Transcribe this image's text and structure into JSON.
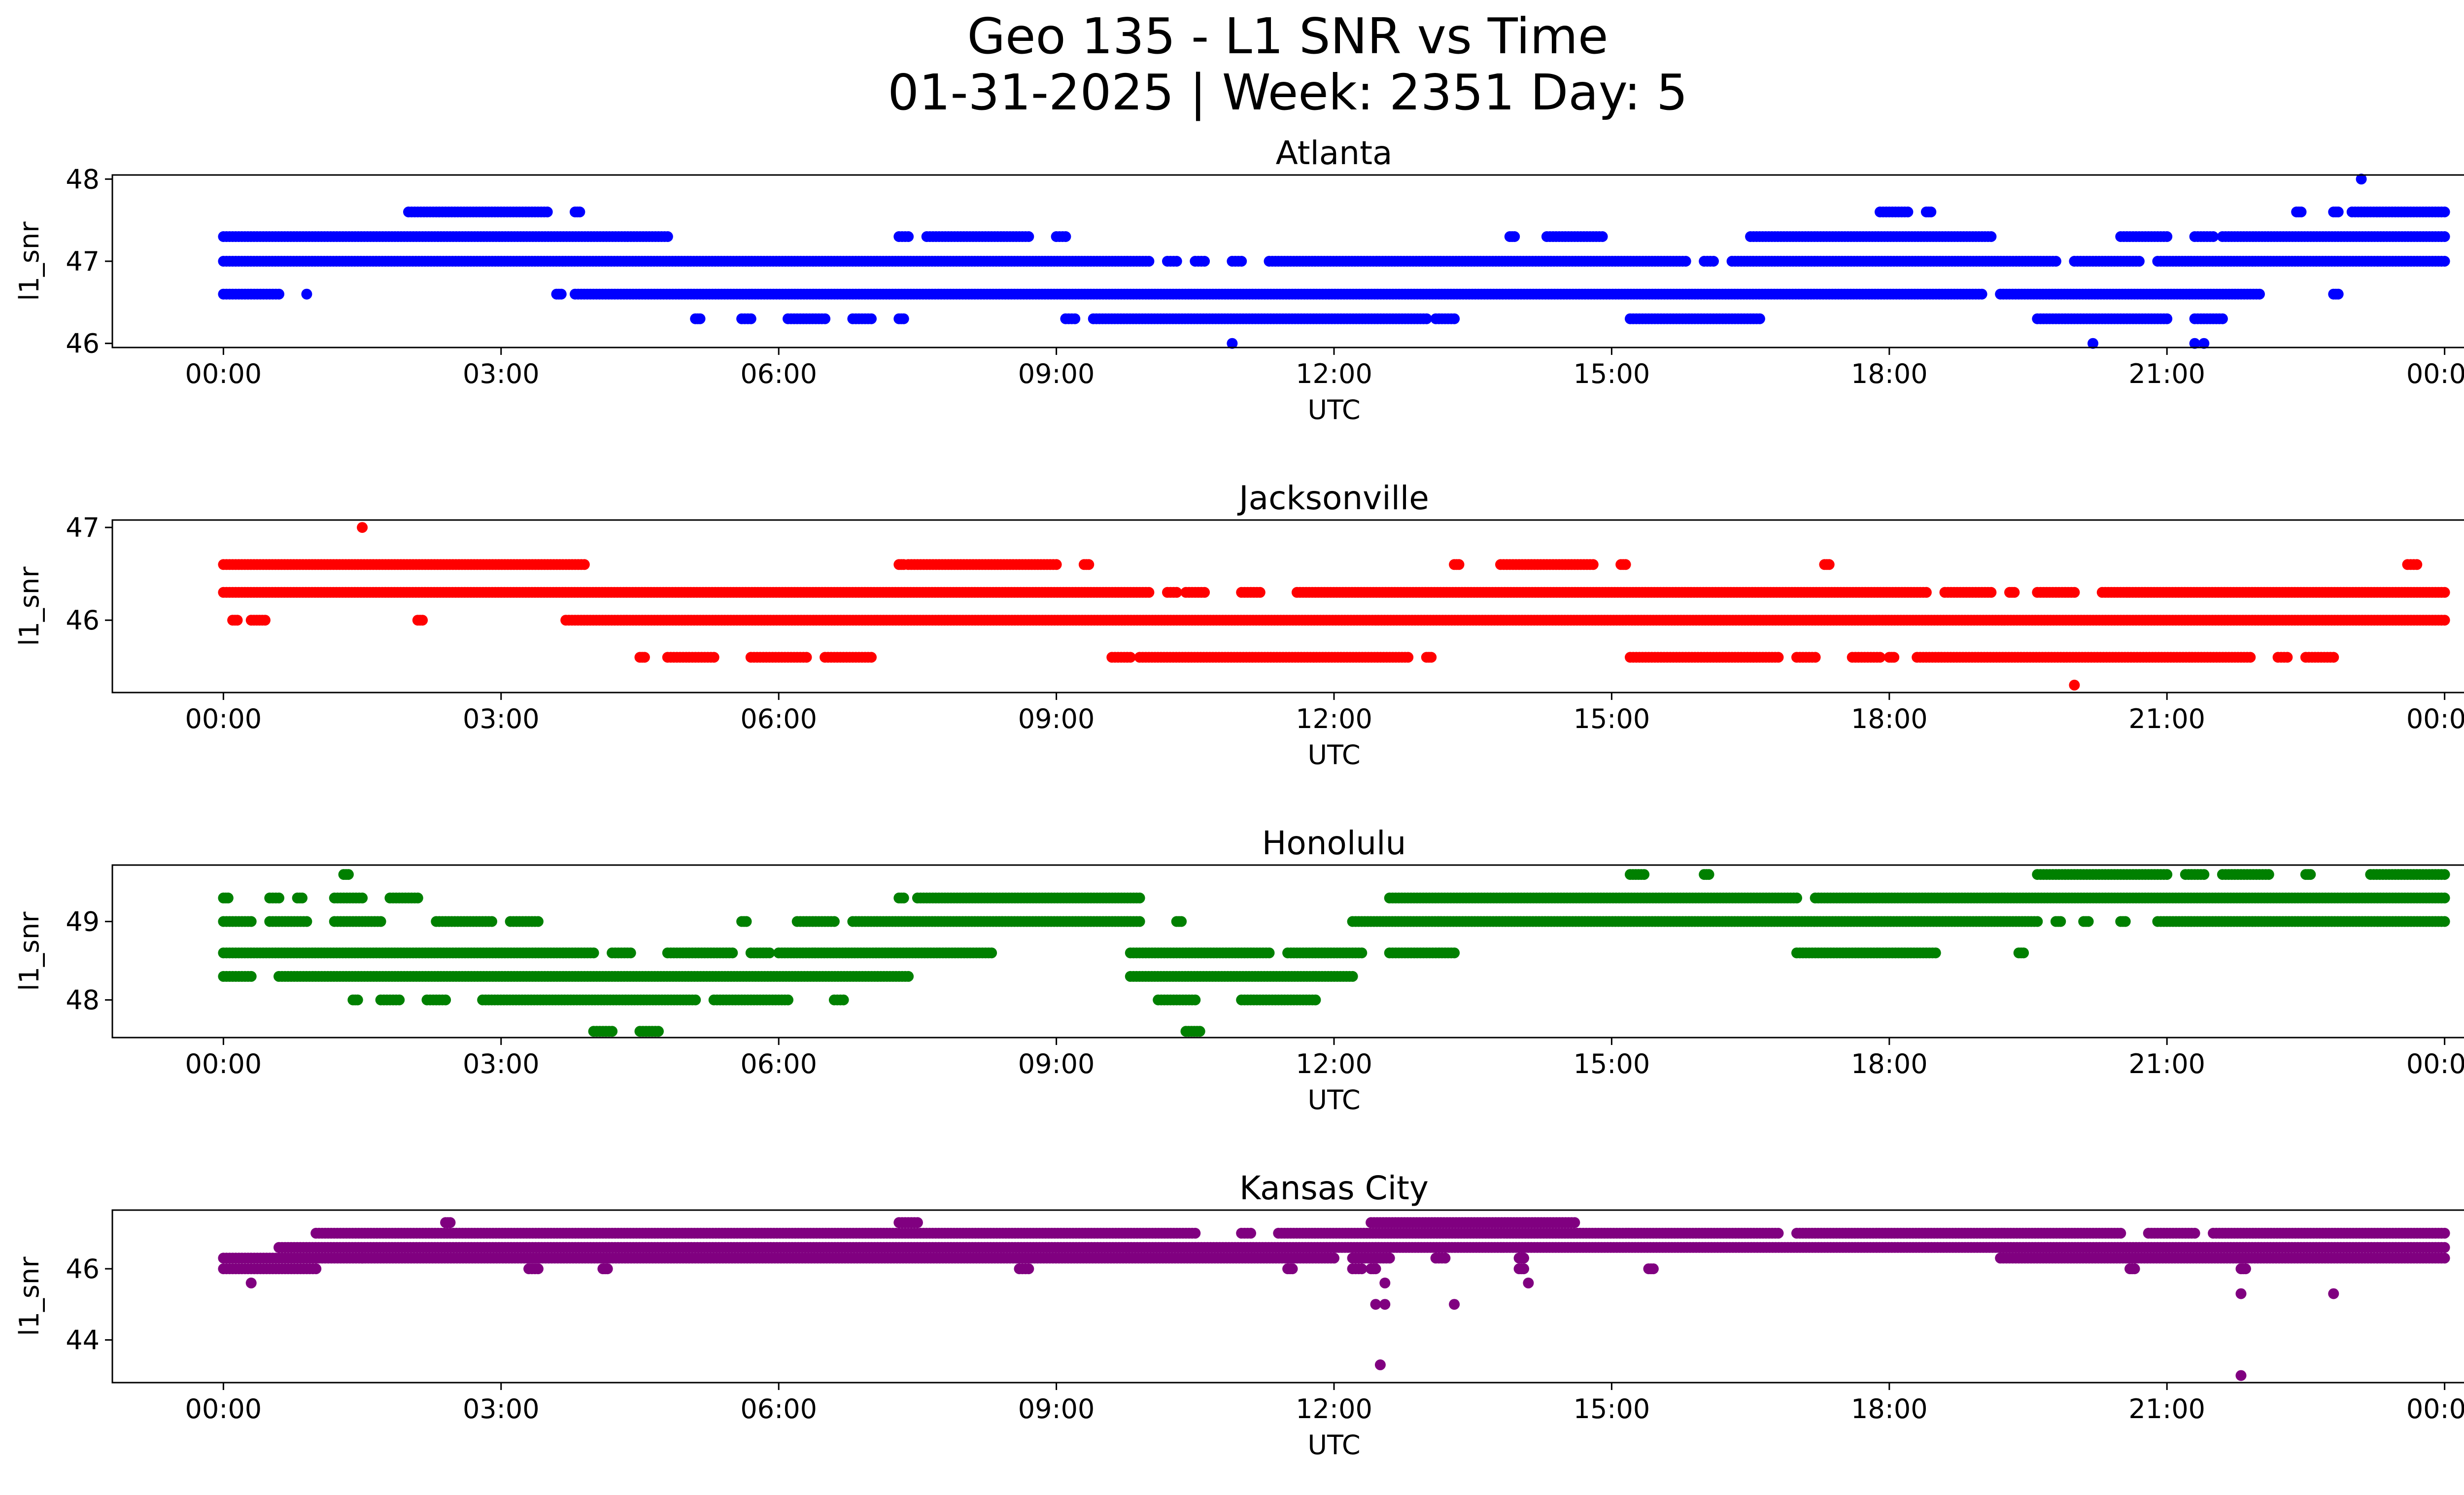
{
  "figure": {
    "title_line1": "Geo 135 - L1 SNR vs Time",
    "title_line2": "01-31-2025 | Week: 2351 Day: 5"
  },
  "chart_data": [
    {
      "type": "scatter",
      "title": "Atlanta",
      "color": "#0000ff",
      "xlabel": "UTC",
      "ylabel": "l1_snr",
      "xlim_hours": [
        -1.2,
        25.2
      ],
      "ylim": [
        45.95,
        48.05
      ],
      "x_ticks": [
        0,
        3,
        6,
        9,
        12,
        15,
        18,
        21,
        24
      ],
      "x_tick_labels": [
        "00:00",
        "03:00",
        "06:00",
        "09:00",
        "12:00",
        "15:00",
        "18:00",
        "21:00",
        "00:00"
      ],
      "y_ticks": [
        46,
        47,
        48
      ],
      "y_tick_labels": [
        "46",
        "47",
        "48"
      ],
      "bands": [
        {
          "y": 47.3,
          "segments": [
            [
              0,
              4.8
            ],
            [
              7.3,
              7.4
            ],
            [
              7.6,
              8.7
            ],
            [
              9.0,
              9.1
            ],
            [
              13.9,
              13.95
            ],
            [
              14.3,
              14.9
            ],
            [
              16.5,
              19.1
            ],
            [
              20.5,
              21.0
            ],
            [
              21.3,
              21.5
            ],
            [
              21.6,
              24.0
            ]
          ]
        },
        {
          "y": 47.0,
          "segments": [
            [
              0,
              10.0
            ],
            [
              10.2,
              10.3
            ],
            [
              10.5,
              10.6
            ],
            [
              10.9,
              11.0
            ],
            [
              11.3,
              15.8
            ],
            [
              16.0,
              16.1
            ],
            [
              16.3,
              19.8
            ],
            [
              20.0,
              20.7
            ],
            [
              20.9,
              24.0
            ]
          ]
        },
        {
          "y": 46.6,
          "segments": [
            [
              0,
              0.6
            ],
            [
              3.6,
              3.65
            ],
            [
              3.8,
              19.0
            ],
            [
              19.2,
              22.0
            ],
            [
              22.8,
              22.85
            ]
          ]
        },
        {
          "y": 46.3,
          "segments": [
            [
              5.1,
              5.15
            ],
            [
              5.6,
              5.7
            ],
            [
              6.1,
              6.5
            ],
            [
              6.8,
              7.0
            ],
            [
              7.3,
              7.35
            ],
            [
              9.1,
              9.2
            ],
            [
              9.4,
              13.0
            ],
            [
              13.1,
              13.3
            ],
            [
              15.2,
              16.6
            ],
            [
              19.6,
              21.0
            ],
            [
              21.3,
              21.6
            ]
          ]
        },
        {
          "y": 47.6,
          "segments": [
            [
              2.0,
              3.5
            ],
            [
              3.8,
              3.85
            ],
            [
              17.9,
              18.2
            ],
            [
              18.4,
              18.45
            ],
            [
              22.4,
              22.45
            ],
            [
              22.8,
              22.85
            ],
            [
              23.0,
              24.0
            ]
          ]
        }
      ],
      "points": [
        {
          "x": 0.9,
          "y": 46.6
        },
        {
          "x": 10.9,
          "y": 46.0
        },
        {
          "x": 20.2,
          "y": 46.0
        },
        {
          "x": 21.3,
          "y": 46.0
        },
        {
          "x": 21.4,
          "y": 46.0
        },
        {
          "x": 23.1,
          "y": 48.0
        }
      ]
    },
    {
      "type": "scatter",
      "title": "Jacksonville",
      "color": "#ff0000",
      "xlabel": "UTC",
      "ylabel": "l1_snr",
      "xlim_hours": [
        -1.2,
        25.2
      ],
      "ylim": [
        45.22,
        47.08
      ],
      "x_ticks": [
        0,
        3,
        6,
        9,
        12,
        15,
        18,
        21,
        24
      ],
      "x_tick_labels": [
        "00:00",
        "03:00",
        "06:00",
        "09:00",
        "12:00",
        "15:00",
        "18:00",
        "21:00",
        "00:00"
      ],
      "y_ticks": [
        46,
        47
      ],
      "y_tick_labels": [
        "46",
        "47"
      ],
      "bands": [
        {
          "y": 46.6,
          "segments": [
            [
              0,
              3.9
            ],
            [
              7.3,
              7.35
            ],
            [
              7.4,
              9.0
            ],
            [
              9.3,
              9.35
            ],
            [
              13.3,
              13.35
            ],
            [
              13.8,
              14.8
            ],
            [
              15.1,
              15.15
            ],
            [
              17.3,
              17.35
            ],
            [
              23.6,
              23.7
            ]
          ]
        },
        {
          "y": 46.3,
          "segments": [
            [
              0,
              10.0
            ],
            [
              10.2,
              10.3
            ],
            [
              10.4,
              10.6
            ],
            [
              11.0,
              11.2
            ],
            [
              11.6,
              18.4
            ],
            [
              18.6,
              19.1
            ],
            [
              19.3,
              19.35
            ],
            [
              19.6,
              20.0
            ],
            [
              20.3,
              24.0
            ]
          ]
        },
        {
          "y": 46.0,
          "segments": [
            [
              0.1,
              0.15
            ],
            [
              0.3,
              0.45
            ],
            [
              2.1,
              2.15
            ],
            [
              3.7,
              24.0
            ]
          ]
        },
        {
          "y": 45.6,
          "segments": [
            [
              4.5,
              4.55
            ],
            [
              4.8,
              5.3
            ],
            [
              5.7,
              6.3
            ],
            [
              6.5,
              7.0
            ],
            [
              9.6,
              9.8
            ],
            [
              9.9,
              12.8
            ],
            [
              13.0,
              13.05
            ],
            [
              15.2,
              16.8
            ],
            [
              17.0,
              17.2
            ],
            [
              17.6,
              17.9
            ],
            [
              18.0,
              18.05
            ],
            [
              18.3,
              21.9
            ],
            [
              22.2,
              22.3
            ],
            [
              22.5,
              22.8
            ]
          ]
        }
      ],
      "points": [
        {
          "x": 1.5,
          "y": 47.0
        },
        {
          "x": 20.0,
          "y": 45.3
        }
      ]
    },
    {
      "type": "scatter",
      "title": "Honolulu",
      "color": "#008000",
      "xlabel": "UTC",
      "ylabel": "l1_snr",
      "xlim_hours": [
        -1.2,
        25.2
      ],
      "ylim": [
        47.52,
        49.72
      ],
      "x_ticks": [
        0,
        3,
        6,
        9,
        12,
        15,
        18,
        21,
        24
      ],
      "x_tick_labels": [
        "00:00",
        "03:00",
        "06:00",
        "09:00",
        "12:00",
        "15:00",
        "18:00",
        "21:00",
        "00:00"
      ],
      "y_ticks": [
        48,
        49
      ],
      "y_tick_labels": [
        "48",
        "49"
      ],
      "bands": [
        {
          "y": 49.6,
          "segments": [
            [
              1.3,
              1.35
            ],
            [
              15.2,
              15.35
            ],
            [
              16.0,
              16.05
            ],
            [
              19.6,
              21.0
            ],
            [
              21.2,
              21.4
            ],
            [
              21.6,
              22.1
            ],
            [
              22.5,
              22.55
            ],
            [
              23.2,
              24.0
            ]
          ]
        },
        {
          "y": 49.3,
          "segments": [
            [
              0,
              0.05
            ],
            [
              0.5,
              0.6
            ],
            [
              0.8,
              0.85
            ],
            [
              1.2,
              1.5
            ],
            [
              1.8,
              2.1
            ],
            [
              7.3,
              7.35
            ],
            [
              7.5,
              9.9
            ],
            [
              12.6,
              17.0
            ],
            [
              17.2,
              24.0
            ]
          ]
        },
        {
          "y": 49.0,
          "segments": [
            [
              0,
              0.3
            ],
            [
              0.5,
              0.9
            ],
            [
              1.2,
              1.7
            ],
            [
              2.3,
              2.9
            ],
            [
              3.1,
              3.4
            ],
            [
              5.6,
              5.65
            ],
            [
              6.2,
              6.6
            ],
            [
              6.8,
              9.9
            ],
            [
              10.3,
              10.35
            ],
            [
              12.2,
              19.6
            ],
            [
              19.8,
              19.85
            ],
            [
              20.1,
              20.15
            ],
            [
              20.5,
              20.55
            ],
            [
              20.9,
              24.0
            ]
          ]
        },
        {
          "y": 48.6,
          "segments": [
            [
              0,
              4.0
            ],
            [
              4.2,
              4.4
            ],
            [
              4.8,
              5.5
            ],
            [
              5.7,
              5.9
            ],
            [
              6.0,
              8.3
            ],
            [
              9.8,
              11.3
            ],
            [
              11.5,
              12.3
            ],
            [
              12.6,
              13.3
            ],
            [
              17.0,
              18.5
            ],
            [
              19.4,
              19.45
            ]
          ]
        },
        {
          "y": 48.3,
          "segments": [
            [
              0,
              0.3
            ],
            [
              0.6,
              7.4
            ],
            [
              9.8,
              12.2
            ]
          ]
        },
        {
          "y": 48.0,
          "segments": [
            [
              1.4,
              1.45
            ],
            [
              1.7,
              1.9
            ],
            [
              2.2,
              2.4
            ],
            [
              2.8,
              5.1
            ],
            [
              5.3,
              6.1
            ],
            [
              6.6,
              6.7
            ],
            [
              10.1,
              10.5
            ],
            [
              11.0,
              11.8
            ]
          ]
        },
        {
          "y": 47.6,
          "segments": [
            [
              4.0,
              4.2
            ],
            [
              4.5,
              4.7
            ],
            [
              10.4,
              10.55
            ]
          ]
        }
      ],
      "points": []
    },
    {
      "type": "scatter",
      "title": "Kansas City",
      "color": "#800080",
      "xlabel": "UTC",
      "ylabel": "l1_snr",
      "xlim_hours": [
        -1.2,
        25.2
      ],
      "ylim": [
        42.8,
        47.65
      ],
      "x_ticks": [
        0,
        3,
        6,
        9,
        12,
        15,
        18,
        21,
        24
      ],
      "x_tick_labels": [
        "00:00",
        "03:00",
        "06:00",
        "09:00",
        "12:00",
        "15:00",
        "18:00",
        "21:00",
        "00:00"
      ],
      "y_ticks": [
        44,
        46
      ],
      "y_tick_labels": [
        "44",
        "46"
      ],
      "bands": [
        {
          "y": 47.3,
          "segments": [
            [
              2.4,
              2.45
            ],
            [
              7.3,
              7.5
            ],
            [
              12.4,
              14.6
            ]
          ]
        },
        {
          "y": 47.0,
          "segments": [
            [
              1.0,
              10.5
            ],
            [
              11.0,
              11.1
            ],
            [
              11.4,
              16.8
            ],
            [
              17.0,
              20.5
            ],
            [
              20.8,
              21.3
            ],
            [
              21.5,
              24.0
            ]
          ]
        },
        {
          "y": 46.6,
          "segments": [
            [
              0.6,
              24.0
            ]
          ]
        },
        {
          "y": 46.3,
          "segments": [
            [
              0,
              1.5
            ],
            [
              1.5,
              12.0
            ],
            [
              12.2,
              12.6
            ],
            [
              13.1,
              13.2
            ],
            [
              14.0,
              14.05
            ],
            [
              19.2,
              24.0
            ]
          ]
        },
        {
          "y": 46.0,
          "segments": [
            [
              0,
              1.0
            ],
            [
              3.3,
              3.4
            ],
            [
              4.1,
              4.15
            ],
            [
              8.6,
              8.7
            ],
            [
              11.5,
              11.55
            ],
            [
              12.2,
              12.3
            ],
            [
              12.4,
              12.45
            ],
            [
              14.0,
              14.05
            ],
            [
              15.4,
              15.45
            ],
            [
              20.6,
              20.65
            ],
            [
              21.8,
              21.85
            ]
          ]
        }
      ],
      "points": [
        {
          "x": 0.3,
          "y": 45.6
        },
        {
          "x": 12.45,
          "y": 45.0
        },
        {
          "x": 12.55,
          "y": 45.0
        },
        {
          "x": 12.55,
          "y": 45.6
        },
        {
          "x": 12.5,
          "y": 43.3
        },
        {
          "x": 13.3,
          "y": 45.0
        },
        {
          "x": 14.1,
          "y": 45.6
        },
        {
          "x": 21.8,
          "y": 45.3
        },
        {
          "x": 21.8,
          "y": 43.0
        },
        {
          "x": 22.8,
          "y": 45.3
        }
      ]
    }
  ]
}
